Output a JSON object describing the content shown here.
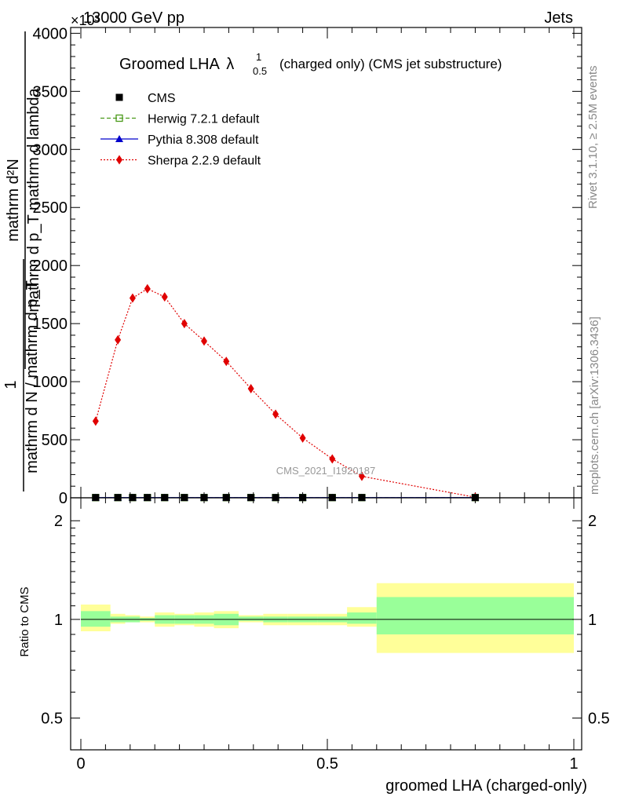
{
  "header": {
    "left": "13000 GeV pp",
    "right": "Jets",
    "exponent": "×10³"
  },
  "side_labels": {
    "rivet": "Rivet 3.1.10, ≥ 2.5M events",
    "mcplots": "mcplots.cern.ch [arXiv:1306.3436]"
  },
  "title": {
    "main": "Groomed LHA",
    "lambda": "λ",
    "sup": "1",
    "sub": "0.5",
    "rest": "(charged only) (CMS jet substructure)"
  },
  "watermark": "CMS_2021_I1920187",
  "legend": [
    {
      "label": "CMS",
      "color": "#000000",
      "marker": "square"
    },
    {
      "label": "Herwig 7.2.1 default",
      "color": "#4a9a1a",
      "marker": "open-square"
    },
    {
      "label": "Pythia 8.308 default",
      "color": "#0000cc",
      "marker": "triangle"
    },
    {
      "label": "Sherpa 2.2.9 default",
      "color": "#e00000",
      "marker": "diamond"
    }
  ],
  "ylabel_top": {
    "line1": "mathrm d²N",
    "line2": "mathrm d p_T mathrm d lambda",
    "prefix": "1",
    "line3": "mathrm d N / mathrm d p_T"
  },
  "ylabel_ratio": "Ratio to CMS",
  "xlabel": "groomed LHA (charged-only)",
  "chart_data": [
    {
      "type": "line",
      "name": "main",
      "xlim": [
        0,
        1
      ],
      "ylim": [
        0,
        4050
      ],
      "yticks": [
        0,
        500,
        1000,
        1500,
        2000,
        2500,
        3000,
        3500,
        4000
      ],
      "ytick_labels": [
        "0",
        "500",
        "1000",
        "1500",
        "2000",
        "2500",
        "3000",
        "3500",
        "4000"
      ],
      "xticks": [
        0,
        0.5,
        1
      ],
      "xtick_labels": [
        "0",
        "0.5",
        "1"
      ],
      "x": [
        0.03,
        0.075,
        0.105,
        0.135,
        0.17,
        0.21,
        0.25,
        0.295,
        0.345,
        0.395,
        0.45,
        0.51,
        0.57,
        0.8
      ],
      "series": [
        {
          "name": "CMS",
          "values": [
            2,
            2,
            2,
            2,
            2,
            2,
            2,
            2,
            2,
            2,
            2,
            2,
            2,
            2
          ]
        },
        {
          "name": "Herwig 7.2.1 default",
          "values": [
            2,
            2,
            2,
            2,
            2,
            2,
            2,
            2,
            2,
            2,
            2,
            2,
            2,
            2
          ]
        },
        {
          "name": "Pythia 8.308 default",
          "values": [
            2,
            2,
            2,
            2,
            2,
            2,
            2,
            2,
            2,
            2,
            2,
            2,
            2,
            2
          ]
        },
        {
          "name": "Sherpa 2.2.9 default",
          "values": [
            660,
            1360,
            1720,
            1800,
            1730,
            1500,
            1350,
            1175,
            940,
            720,
            515,
            335,
            185,
            5
          ]
        }
      ]
    },
    {
      "type": "area",
      "name": "ratio",
      "xlim": [
        0,
        1
      ],
      "ylim": [
        0.4,
        2.35
      ],
      "log_y": true,
      "yticks": [
        0.5,
        1,
        2
      ],
      "ytick_labels": [
        "0.5",
        "1",
        "2"
      ],
      "bins": [
        [
          0.0,
          0.06
        ],
        [
          0.06,
          0.09
        ],
        [
          0.09,
          0.12
        ],
        [
          0.12,
          0.15
        ],
        [
          0.15,
          0.19
        ],
        [
          0.19,
          0.23
        ],
        [
          0.23,
          0.27
        ],
        [
          0.27,
          0.32
        ],
        [
          0.32,
          0.37
        ],
        [
          0.37,
          0.42
        ],
        [
          0.42,
          0.48
        ],
        [
          0.48,
          0.54
        ],
        [
          0.54,
          0.6
        ],
        [
          0.6,
          1.0
        ]
      ],
      "stat_band": [
        [
          0.95,
          1.06
        ],
        [
          0.98,
          1.02
        ],
        [
          0.98,
          1.02
        ],
        [
          0.99,
          1.01
        ],
        [
          0.97,
          1.03
        ],
        [
          0.97,
          1.03
        ],
        [
          0.97,
          1.03
        ],
        [
          0.96,
          1.04
        ],
        [
          0.99,
          1.02
        ],
        [
          0.98,
          1.02
        ],
        [
          0.98,
          1.02
        ],
        [
          0.98,
          1.02
        ],
        [
          0.97,
          1.05
        ],
        [
          0.9,
          1.17
        ]
      ],
      "total_band": [
        [
          0.92,
          1.11
        ],
        [
          0.97,
          1.04
        ],
        [
          0.98,
          1.03
        ],
        [
          0.98,
          1.02
        ],
        [
          0.95,
          1.05
        ],
        [
          0.96,
          1.04
        ],
        [
          0.95,
          1.05
        ],
        [
          0.94,
          1.06
        ],
        [
          0.98,
          1.03
        ],
        [
          0.96,
          1.04
        ],
        [
          0.96,
          1.04
        ],
        [
          0.96,
          1.04
        ],
        [
          0.95,
          1.09
        ],
        [
          0.79,
          1.29
        ]
      ],
      "band_colors": {
        "stat": "#99ff99",
        "total": "#ffff99"
      }
    }
  ]
}
